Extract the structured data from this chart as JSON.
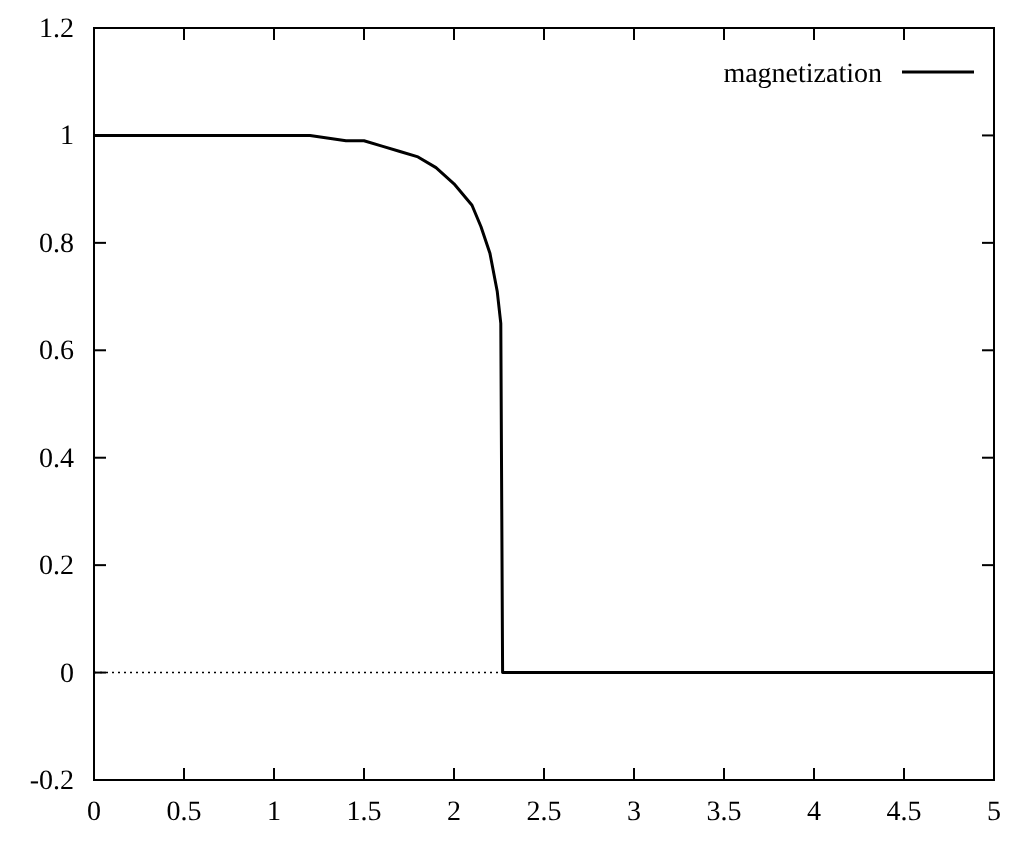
{
  "chart_data": {
    "type": "line",
    "x": [
      0,
      0.5,
      1.0,
      1.2,
      1.4,
      1.5,
      1.6,
      1.7,
      1.8,
      1.9,
      2.0,
      2.1,
      2.15,
      2.2,
      2.24,
      2.26,
      2.27,
      2.3,
      3,
      4,
      5
    ],
    "series": [
      {
        "name": "magnetization",
        "color": "#000000",
        "values": [
          1,
          1,
          1.0,
          1.0,
          0.99,
          0.99,
          0.98,
          0.97,
          0.96,
          0.94,
          0.91,
          0.87,
          0.83,
          0.78,
          0.71,
          0.65,
          0,
          0,
          0,
          0,
          0
        ]
      }
    ],
    "xlim": [
      0,
      5
    ],
    "xticks": [
      0,
      0.5,
      1,
      1.5,
      2,
      2.5,
      3,
      3.5,
      4,
      4.5,
      5
    ],
    "ylim": [
      -0.2,
      1.2
    ],
    "yticks": [
      -0.2,
      0,
      0.2,
      0.4,
      0.6,
      0.8,
      1,
      1.2
    ],
    "ref_lines": [
      {
        "axis": "y",
        "value": 0,
        "line_style": "dotted",
        "color": "#000000"
      }
    ],
    "legend": "top right",
    "marker": "none",
    "line_style": "solid",
    "grid": false
  }
}
